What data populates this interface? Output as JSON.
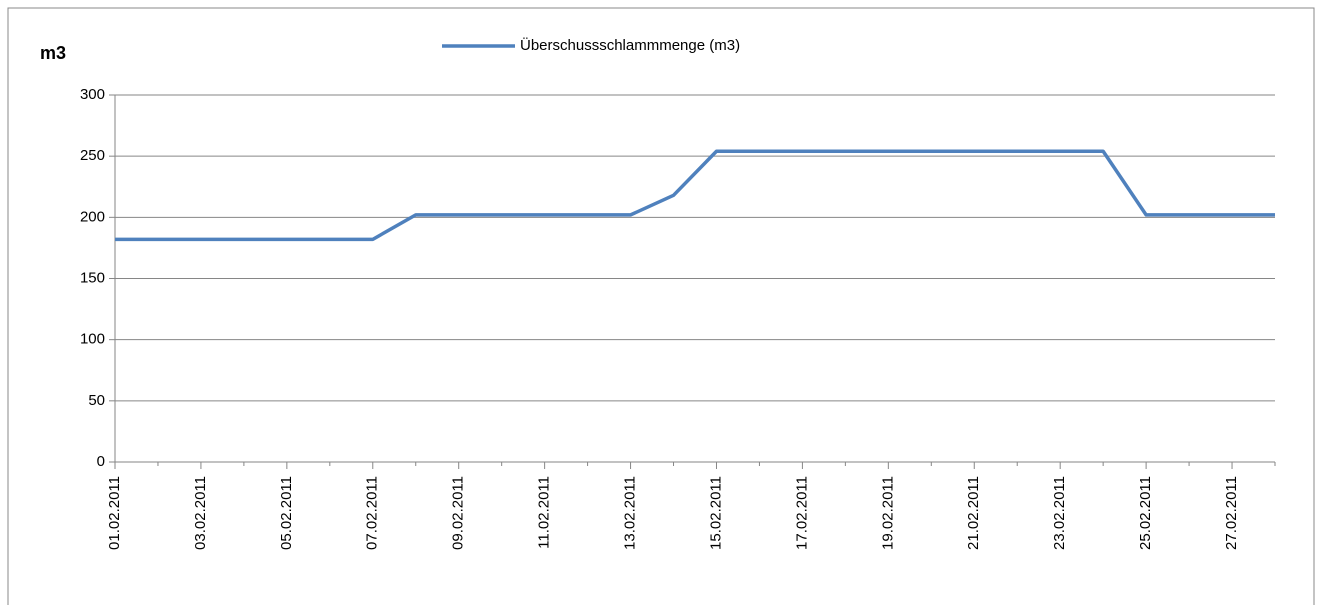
{
  "chart_data": {
    "type": "line",
    "y_label": "m3",
    "categories": [
      "01.02.2011",
      null,
      "03.02.2011",
      null,
      "05.02.2011",
      null,
      "07.02.2011",
      null,
      "09.02.2011",
      null,
      "11.02.2011",
      null,
      "13.02.2011",
      null,
      "15.02.2011",
      null,
      "17.02.2011",
      null,
      "19.02.2011",
      null,
      "21.02.2011",
      null,
      "23.02.2011",
      null,
      "25.02.2011",
      null,
      "27.02.2011",
      null
    ],
    "series": [
      {
        "name": "Überschussschlammmenge (m3)",
        "color": "#4f81bd",
        "values": [
          182,
          182,
          182,
          182,
          182,
          182,
          182,
          202,
          202,
          202,
          202,
          202,
          202,
          218,
          254,
          254,
          254,
          254,
          254,
          254,
          254,
          254,
          254,
          254,
          202,
          202,
          202,
          202
        ]
      }
    ],
    "ylim": [
      0,
      300
    ],
    "yticks": [
      0,
      50,
      100,
      150,
      200,
      250,
      300
    ],
    "grid": true,
    "legend": "top"
  }
}
